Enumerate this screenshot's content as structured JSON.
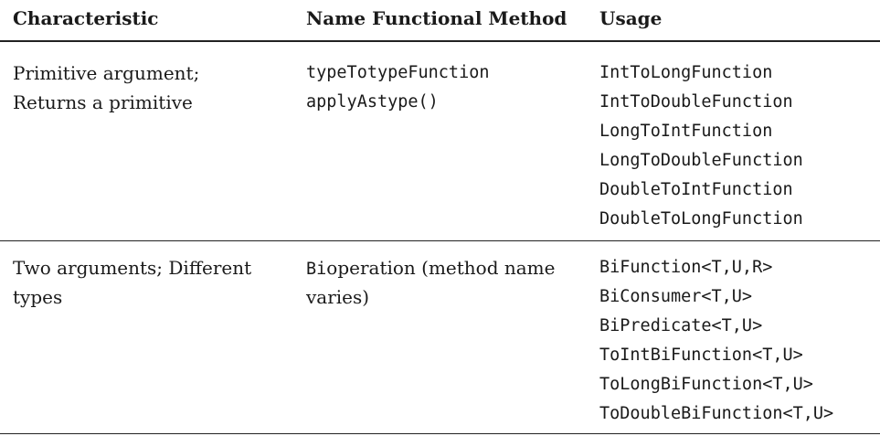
{
  "headers": {
    "characteristic": "Characteristic",
    "name_method": "Name Functional Method",
    "usage": "Usage"
  },
  "rows": [
    {
      "characteristic_lines": [
        "Primitive argument;",
        "Returns a primitive"
      ],
      "name_lines": [
        "typeTotypeFunction",
        "applyAstype()"
      ],
      "usage": [
        "IntToLongFunction",
        "IntToDoubleFunction",
        "LongToIntFunction",
        "LongToDoubleFunction",
        "DoubleToIntFunction",
        "DoubleToLongFunction"
      ]
    },
    {
      "characteristic_lines": [
        "Two arguments; Different",
        "types"
      ],
      "name_mono_prefix": "Bi",
      "name_line1_rest": "operation (method name",
      "name_line2": "varies)",
      "usage": [
        "BiFunction<T,U,R>",
        "BiConsumer<T,U>",
        "BiPredicate<T,U>",
        "ToIntBiFunction<T,U>",
        "ToLongBiFunction<T,U>",
        "ToDoubleBiFunction<T,U>"
      ]
    }
  ]
}
